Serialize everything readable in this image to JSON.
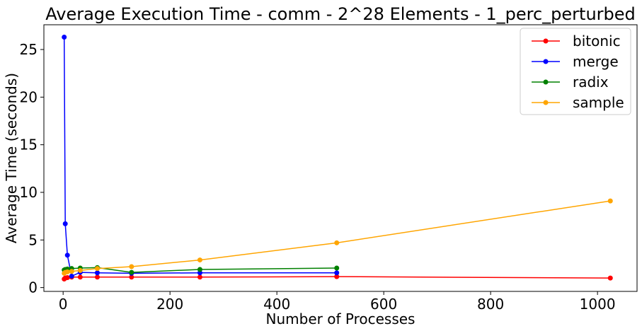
{
  "chart_data": {
    "type": "line",
    "title": "Average Execution Time - comm - 2^28 Elements - 1_perc_perturbed",
    "xlabel": "Number of Processes",
    "ylabel": "Average Time (seconds)",
    "xlim": [
      -36,
      1074
    ],
    "ylim": [
      -0.4,
      27.6
    ],
    "xticks": [
      0,
      200,
      400,
      600,
      800,
      1000
    ],
    "yticks": [
      0,
      5,
      10,
      15,
      20,
      25
    ],
    "grid": false,
    "legend_position": "top-right",
    "series": [
      {
        "name": "bitonic",
        "color": "#ff0000",
        "x": [
          2,
          4,
          8,
          16,
          32,
          64,
          128,
          256,
          512,
          1024
        ],
        "y": [
          0.9,
          1.0,
          1.05,
          1.1,
          1.1,
          1.1,
          1.1,
          1.1,
          1.15,
          1.0
        ]
      },
      {
        "name": "merge",
        "color": "#0000ff",
        "x": [
          2,
          4,
          8,
          16,
          32,
          64,
          128,
          256,
          512
        ],
        "y": [
          26.3,
          6.7,
          3.4,
          1.2,
          1.6,
          1.55,
          1.5,
          1.55,
          1.55
        ]
      },
      {
        "name": "radix",
        "color": "#008000",
        "x": [
          2,
          4,
          8,
          16,
          32,
          64,
          128,
          256,
          512
        ],
        "y": [
          1.85,
          1.9,
          1.95,
          2.0,
          2.05,
          2.1,
          1.6,
          1.9,
          2.05
        ]
      },
      {
        "name": "sample",
        "color": "#ffa500",
        "x": [
          2,
          4,
          8,
          16,
          32,
          64,
          128,
          256,
          512,
          1024
        ],
        "y": [
          1.5,
          1.6,
          1.65,
          1.7,
          1.8,
          2.0,
          2.2,
          2.9,
          4.7,
          9.1
        ]
      }
    ]
  }
}
